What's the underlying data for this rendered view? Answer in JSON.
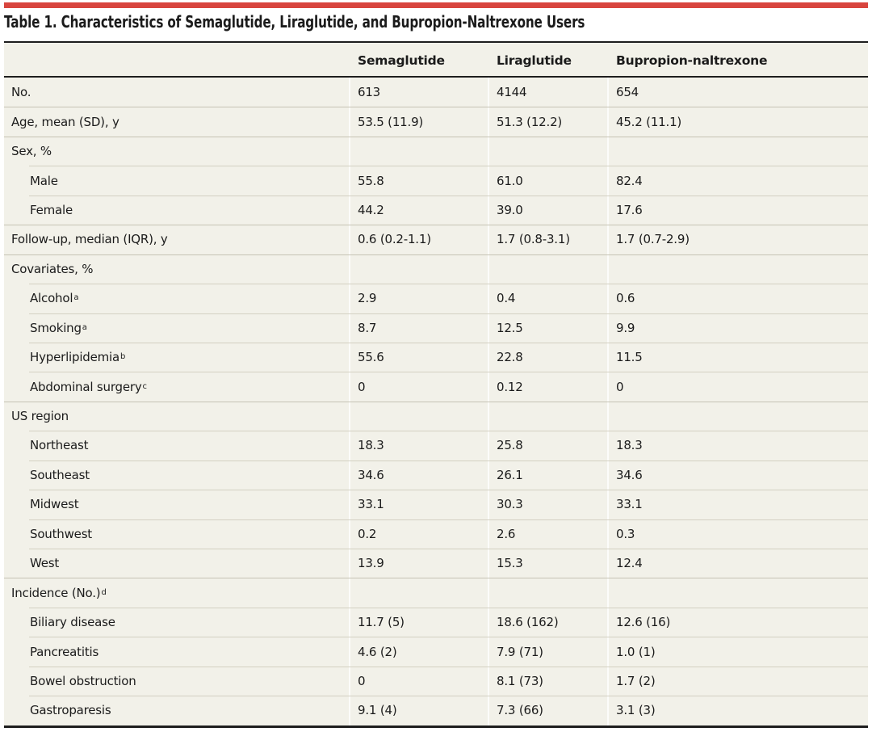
{
  "title": "Table 1. Characteristics of Semaglutide, Liraglutide, and Bupropion-Naltrexone Users",
  "colors": {
    "accent_red": "#d8453e",
    "table_background": "#f2f1e9"
  },
  "table": {
    "columns": [
      "Semaglutide",
      "Liraglutide",
      "Bupropion-naltrexone"
    ],
    "rows": [
      {
        "label": "No.",
        "values": [
          "613",
          "4144",
          "654"
        ]
      },
      {
        "label": "Age, mean (SD), y",
        "values": [
          "53.5 (11.9)",
          "51.3 (12.2)",
          "45.2 (11.1)"
        ]
      },
      {
        "label": "Sex, %",
        "section": true,
        "values": []
      },
      {
        "label": "Male",
        "indent": true,
        "values": [
          "55.8",
          "61.0",
          "82.4"
        ]
      },
      {
        "label": "Female",
        "indent": true,
        "values": [
          "44.2",
          "39.0",
          "17.6"
        ]
      },
      {
        "label": "Follow-up, median (IQR), y",
        "values": [
          "0.6 (0.2-1.1)",
          "1.7 (0.8-3.1)",
          "1.7 (0.7-2.9)"
        ]
      },
      {
        "label": "Covariates, %",
        "section": true,
        "values": []
      },
      {
        "label": "Alcohol",
        "sup": "a",
        "indent": true,
        "values": [
          "2.9",
          "0.4",
          "0.6"
        ]
      },
      {
        "label": "Smoking",
        "sup": "a",
        "indent": true,
        "values": [
          "8.7",
          "12.5",
          "9.9"
        ]
      },
      {
        "label": "Hyperlipidemia",
        "sup": "b",
        "indent": true,
        "values": [
          "55.6",
          "22.8",
          "11.5"
        ]
      },
      {
        "label": "Abdominal surgery",
        "sup": "c",
        "indent": true,
        "values": [
          "0",
          "0.12",
          "0"
        ]
      },
      {
        "label": "US region",
        "section": true,
        "values": []
      },
      {
        "label": "Northeast",
        "indent": true,
        "values": [
          "18.3",
          "25.8",
          "18.3"
        ]
      },
      {
        "label": "Southeast",
        "indent": true,
        "values": [
          "34.6",
          "26.1",
          "34.6"
        ]
      },
      {
        "label": "Midwest",
        "indent": true,
        "values": [
          "33.1",
          "30.3",
          "33.1"
        ]
      },
      {
        "label": "Southwest",
        "indent": true,
        "values": [
          "0.2",
          "2.6",
          "0.3"
        ]
      },
      {
        "label": "West",
        "indent": true,
        "values": [
          "13.9",
          "15.3",
          "12.4"
        ]
      },
      {
        "label": "Incidence (No.)",
        "sup": "d",
        "section": true,
        "values": []
      },
      {
        "label": "Biliary disease",
        "indent": true,
        "values": [
          "11.7 (5)",
          "18.6 (162)",
          "12.6 (16)"
        ]
      },
      {
        "label": "Pancreatitis",
        "indent": true,
        "values": [
          "4.6 (2)",
          "7.9 (71)",
          "1.0 (1)"
        ]
      },
      {
        "label": "Bowel obstruction",
        "indent": true,
        "values": [
          "0",
          "8.1 (73)",
          "1.7 (2)"
        ]
      },
      {
        "label": "Gastroparesis",
        "indent": true,
        "values": [
          "9.1 (4)",
          "7.3 (66)",
          "3.1 (3)"
        ]
      }
    ]
  }
}
